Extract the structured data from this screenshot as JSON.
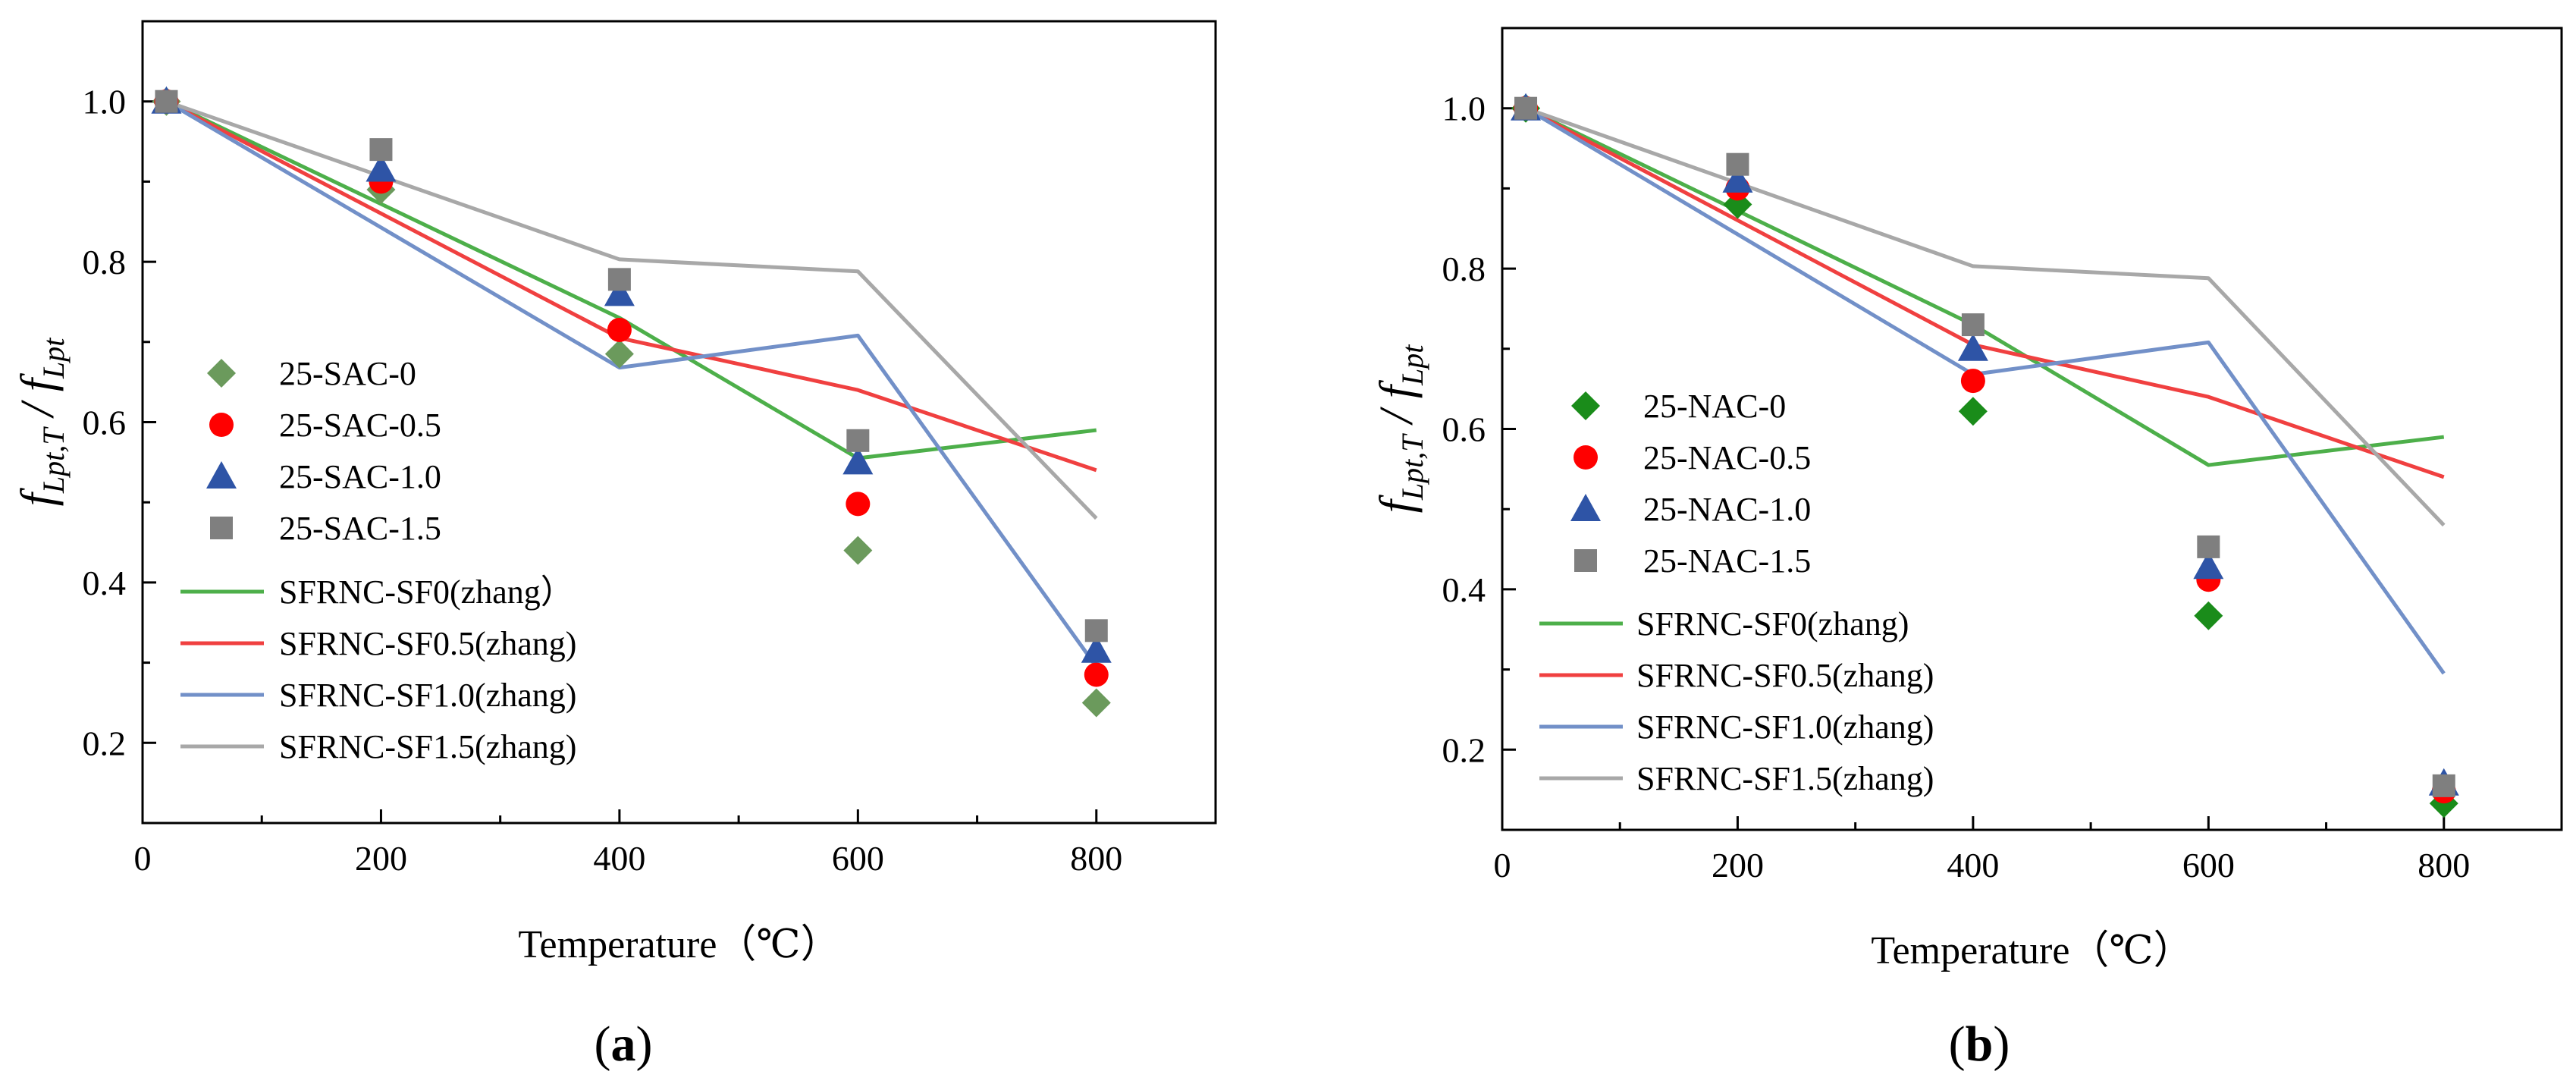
{
  "chart_data": [
    {
      "panel": "(a)",
      "panel_letter": "a",
      "type": "scatter",
      "xlabel": "Temperature（℃）",
      "ylabel_main": "f",
      "ylabel_sub1": "Lpt,T",
      "ylabel_slash": "/",
      "ylabel_sub2": "Lpt",
      "xlim": [
        0,
        900
      ],
      "ylim": [
        0.1,
        1.1
      ],
      "xticks": [
        0,
        200,
        400,
        600,
        800
      ],
      "yticks": [
        0.2,
        0.4,
        0.6,
        0.8,
        1.0
      ],
      "xtick_labels": [
        "0",
        "200",
        "400",
        "600",
        "800"
      ],
      "ytick_labels": [
        "0.2",
        "0.4",
        "0.6",
        "0.8",
        "1.0"
      ],
      "legend_position": "left",
      "series": [
        {
          "name": "25-SAC-0",
          "kind": "scatter",
          "marker": "diamond",
          "color": "#6b9a5c",
          "x": [
            20,
            200,
            400,
            600,
            800
          ],
          "y": [
            1.0,
            0.89,
            0.685,
            0.44,
            0.25
          ]
        },
        {
          "name": "25-SAC-0.5",
          "kind": "scatter",
          "marker": "circle",
          "color": "#ff0000",
          "x": [
            20,
            200,
            400,
            600,
            800
          ],
          "y": [
            1.0,
            0.9,
            0.715,
            0.498,
            0.285
          ]
        },
        {
          "name": "25-SAC-1.0",
          "kind": "scatter",
          "marker": "triangle",
          "color": "#2e54a6",
          "x": [
            20,
            200,
            400,
            600,
            800
          ],
          "y": [
            1.0,
            0.915,
            0.76,
            0.55,
            0.315
          ]
        },
        {
          "name": "25-SAC-1.5",
          "kind": "scatter",
          "marker": "square",
          "color": "#7f7f7f",
          "x": [
            20,
            200,
            400,
            600,
            800
          ],
          "y": [
            1.0,
            0.94,
            0.778,
            0.577,
            0.34
          ]
        },
        {
          "name": "SFRNC-SF0(zhang）",
          "kind": "line",
          "color": "#4daf4a",
          "x": [
            20,
            400,
            600,
            800
          ],
          "y": [
            1.0,
            0.73,
            0.555,
            0.59
          ]
        },
        {
          "name": "SFRNC-SF0.5(zhang)",
          "kind": "line",
          "color": "#f04040",
          "x": [
            20,
            400,
            600,
            800
          ],
          "y": [
            1.0,
            0.705,
            0.64,
            0.54
          ]
        },
        {
          "name": "SFRNC-SF1.0(zhang)",
          "kind": "line",
          "color": "#7290c8",
          "x": [
            20,
            400,
            600,
            800
          ],
          "y": [
            1.0,
            0.668,
            0.708,
            0.295
          ]
        },
        {
          "name": "SFRNC-SF1.5(zhang)",
          "kind": "line",
          "color": "#a8a8a8",
          "x": [
            20,
            400,
            600,
            800
          ],
          "y": [
            1.0,
            0.803,
            0.788,
            0.48
          ]
        }
      ]
    },
    {
      "panel": "(b)",
      "panel_letter": "b",
      "type": "scatter",
      "xlabel": "Temperature（℃）",
      "ylabel_main": "f",
      "ylabel_sub1": "Lpt,T",
      "ylabel_slash": "/",
      "ylabel_sub2": "Lpt",
      "xlim": [
        0,
        900
      ],
      "ylim": [
        0.1,
        1.1
      ],
      "xticks": [
        0,
        200,
        400,
        600,
        800
      ],
      "yticks": [
        0.2,
        0.4,
        0.6,
        0.8,
        1.0
      ],
      "xtick_labels": [
        "0",
        "200",
        "400",
        "600",
        "800"
      ],
      "ytick_labels": [
        "0.2",
        "0.4",
        "0.6",
        "0.8",
        "1.0"
      ],
      "legend_position": "left",
      "series": [
        {
          "name": "25-NAC-0",
          "kind": "scatter",
          "marker": "diamond",
          "color": "#1a8c1a",
          "x": [
            20,
            200,
            400,
            600,
            800
          ],
          "y": [
            1.0,
            0.88,
            0.622,
            0.367,
            0.133
          ]
        },
        {
          "name": "25-NAC-0.5",
          "kind": "scatter",
          "marker": "circle",
          "color": "#ff0000",
          "x": [
            20,
            200,
            400,
            600,
            800
          ],
          "y": [
            1.0,
            0.9,
            0.66,
            0.412,
            0.148
          ]
        },
        {
          "name": "25-NAC-1.0",
          "kind": "scatter",
          "marker": "triangle",
          "color": "#2e54a6",
          "x": [
            20,
            200,
            400,
            600,
            800
          ],
          "y": [
            1.0,
            0.91,
            0.7,
            0.428,
            0.158
          ]
        },
        {
          "name": "25-NAC-1.5",
          "kind": "scatter",
          "marker": "square",
          "color": "#7f7f7f",
          "x": [
            20,
            200,
            400,
            600,
            800
          ],
          "y": [
            1.0,
            0.93,
            0.73,
            0.453,
            0.155
          ]
        },
        {
          "name": "SFRNC-SF0(zhang)",
          "kind": "line",
          "color": "#4daf4a",
          "x": [
            20,
            400,
            600,
            800
          ],
          "y": [
            1.0,
            0.73,
            0.555,
            0.59
          ]
        },
        {
          "name": "SFRNC-SF0.5(zhang)",
          "kind": "line",
          "color": "#f04040",
          "x": [
            20,
            400,
            600,
            800
          ],
          "y": [
            1.0,
            0.705,
            0.64,
            0.54
          ]
        },
        {
          "name": "SFRNC-SF1.0(zhang)",
          "kind": "line",
          "color": "#7290c8",
          "x": [
            20,
            400,
            600,
            800
          ],
          "y": [
            1.0,
            0.668,
            0.708,
            0.295
          ]
        },
        {
          "name": "SFRNC-SF1.5(zhang)",
          "kind": "line",
          "color": "#a8a8a8",
          "x": [
            20,
            400,
            600,
            800
          ],
          "y": [
            1.0,
            0.803,
            0.788,
            0.48
          ]
        }
      ]
    }
  ]
}
